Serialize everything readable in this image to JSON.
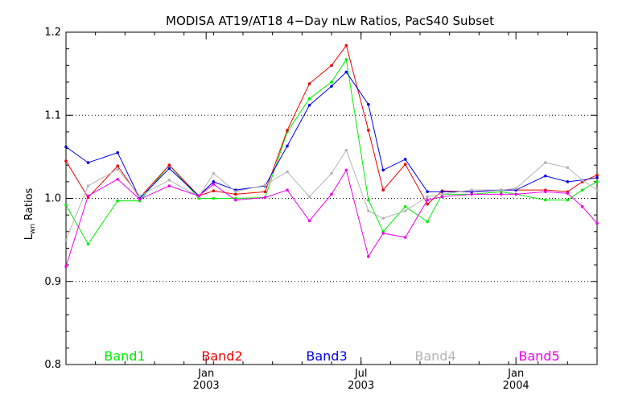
{
  "chart_data": {
    "type": "line",
    "title": "MODISA AT19/AT18 4−Day nLw Ratios, PacS40 Subset",
    "ylabel_main": "L",
    "ylabel_sub": "wn",
    "ylabel_rest": " Ratios",
    "xlabel": "",
    "ylim": [
      0.8,
      1.2
    ],
    "xlim": [
      0,
      36
    ],
    "yticks": [
      {
        "value": 0.8,
        "label": "0.8"
      },
      {
        "value": 0.9,
        "label": "0.9"
      },
      {
        "value": 1.0,
        "label": "1.0"
      },
      {
        "value": 1.1,
        "label": "1.1"
      },
      {
        "value": 1.2,
        "label": "1.2"
      }
    ],
    "grid_y": [
      0.9,
      1.0,
      1.1
    ],
    "xticks_major": [
      {
        "value": 9.5,
        "month": "Jan",
        "year": "2003"
      },
      {
        "value": 20,
        "month": "Jul",
        "year": "2003"
      },
      {
        "value": 30.5,
        "month": "Jan",
        "year": "2004"
      }
    ],
    "xticks_minor": [
      0,
      2,
      4,
      6,
      8,
      10,
      12,
      14,
      16,
      18,
      20,
      22,
      24,
      26,
      28,
      30,
      32,
      34,
      36
    ],
    "x": [
      0,
      1.5,
      3.5,
      5,
      7,
      9,
      10,
      11.5,
      13.5,
      15,
      16.5,
      18,
      19,
      20.5,
      21.5,
      23,
      24.5,
      25.5,
      27.5,
      29.5,
      30.5,
      32.5,
      34,
      35,
      36
    ],
    "series": [
      {
        "name": "Band1",
        "color": "#00ee00",
        "values": [
          0.992,
          0.945,
          0.997,
          0.997,
          1.04,
          1.0,
          1.0,
          1.0,
          1.001,
          1.08,
          1.12,
          1.14,
          1.167,
          0.998,
          0.96,
          0.99,
          0.972,
          1.005,
          1.005,
          1.008,
          1.005,
          0.998,
          0.998,
          1.01,
          1.02
        ]
      },
      {
        "name": "Band2",
        "color": "#ee0000",
        "values": [
          1.045,
          1.001,
          1.039,
          1.001,
          1.04,
          1.003,
          1.009,
          1.005,
          1.008,
          1.082,
          1.138,
          1.16,
          1.184,
          1.082,
          1.01,
          1.041,
          0.993,
          1.009,
          1.008,
          1.01,
          1.01,
          1.01,
          1.008,
          1.02,
          1.028
        ]
      },
      {
        "name": "Band3",
        "color": "#0000ee",
        "values": [
          1.062,
          1.043,
          1.055,
          1.0,
          1.036,
          1.003,
          1.02,
          1.01,
          1.015,
          1.063,
          1.112,
          1.135,
          1.152,
          1.113,
          1.034,
          1.047,
          1.008,
          1.008,
          1.008,
          1.01,
          1.01,
          1.027,
          1.02,
          1.022,
          1.025
        ]
      },
      {
        "name": "Band4",
        "color": "#b4b4b4",
        "values": [
          0.95,
          1.015,
          1.035,
          1.003,
          1.022,
          1.002,
          1.03,
          1.008,
          1.016,
          1.032,
          1.002,
          1.03,
          1.058,
          0.985,
          0.976,
          0.985,
          1.002,
          1.005,
          1.01,
          1.01,
          1.012,
          1.043,
          1.037,
          1.022,
          1.01
        ]
      },
      {
        "name": "Band5",
        "color": "#ee00ee",
        "values": [
          0.918,
          1.003,
          1.023,
          0.999,
          1.015,
          1.003,
          1.017,
          0.998,
          1.001,
          1.01,
          0.973,
          1.005,
          1.034,
          0.93,
          0.958,
          0.953,
          0.998,
          1.002,
          1.005,
          1.005,
          1.005,
          1.008,
          1.006,
          0.99,
          0.97
        ]
      }
    ]
  }
}
